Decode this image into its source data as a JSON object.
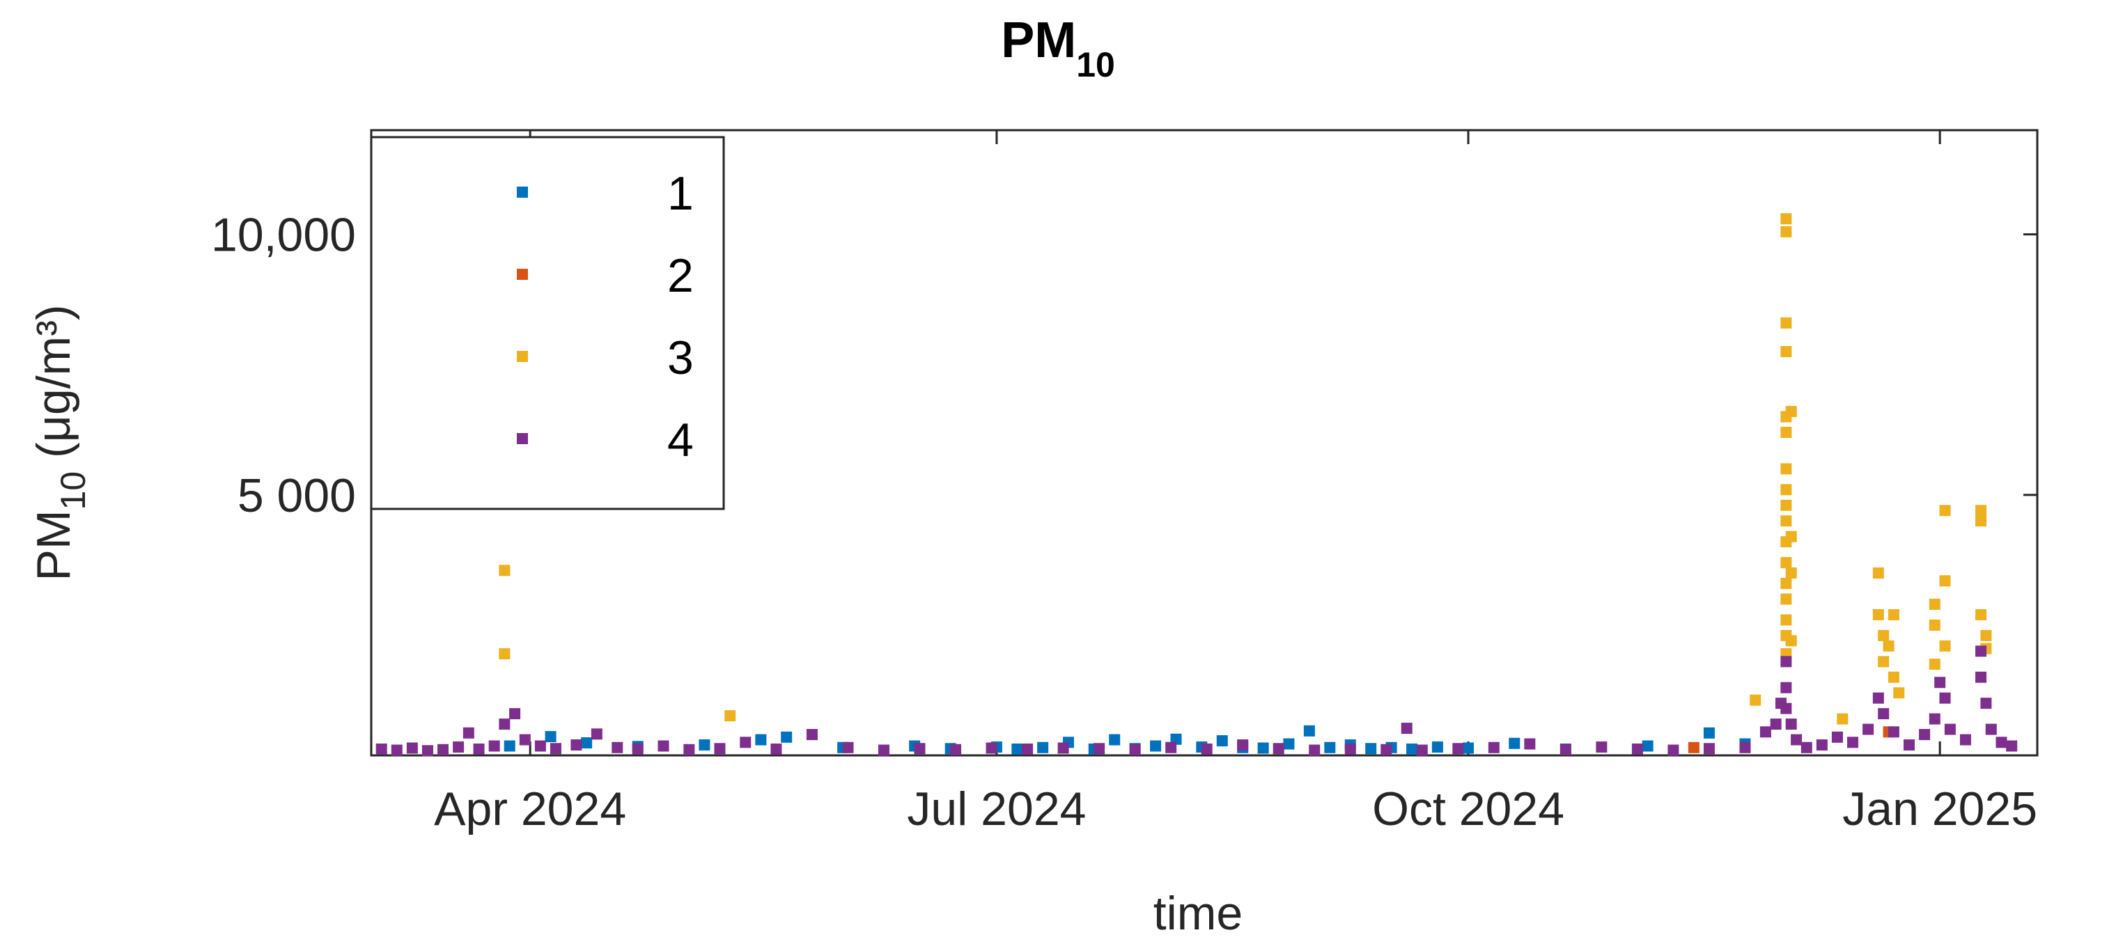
{
  "chart_data": {
    "type": "scatter",
    "title": {
      "main": "PM",
      "sub": "10"
    },
    "xlabel": "time",
    "ylabel": {
      "prefix": "PM",
      "sub": "10",
      "suffix": " (μg/m³)"
    },
    "x_axis": {
      "range": [
        "2024-03-01",
        "2025-01-20"
      ],
      "ticks": [
        {
          "date": "2024-04-01",
          "label": "Apr 2024"
        },
        {
          "date": "2024-07-01",
          "label": "Jul 2024"
        },
        {
          "date": "2024-10-01",
          "label": "Oct 2024"
        },
        {
          "date": "2025-01-01",
          "label": "Jan 2025"
        }
      ]
    },
    "y_axis": {
      "range": [
        0,
        12000
      ],
      "ticks": [
        {
          "value": 5000,
          "label": "5 000"
        },
        {
          "value": 10000,
          "label": "10,000"
        }
      ]
    },
    "grid": false,
    "legend": {
      "position": "top-left",
      "box": true
    },
    "series": [
      {
        "name": "1",
        "color": "#0072BD",
        "points": [
          [
            "2024-03-28",
            180
          ],
          [
            "2024-04-05",
            360
          ],
          [
            "2024-04-12",
            240
          ],
          [
            "2024-04-22",
            170
          ],
          [
            "2024-05-05",
            200
          ],
          [
            "2024-05-16",
            300
          ],
          [
            "2024-05-21",
            350
          ],
          [
            "2024-06-01",
            150
          ],
          [
            "2024-06-15",
            180
          ],
          [
            "2024-06-22",
            130
          ],
          [
            "2024-07-01",
            160
          ],
          [
            "2024-07-05",
            120
          ],
          [
            "2024-07-10",
            150
          ],
          [
            "2024-07-15",
            250
          ],
          [
            "2024-07-20",
            120
          ],
          [
            "2024-07-24",
            300
          ],
          [
            "2024-07-28",
            130
          ],
          [
            "2024-08-01",
            180
          ],
          [
            "2024-08-05",
            310
          ],
          [
            "2024-08-10",
            160
          ],
          [
            "2024-08-14",
            280
          ],
          [
            "2024-08-18",
            150
          ],
          [
            "2024-08-22",
            140
          ],
          [
            "2024-08-27",
            220
          ],
          [
            "2024-08-31",
            470
          ],
          [
            "2024-09-04",
            150
          ],
          [
            "2024-09-08",
            200
          ],
          [
            "2024-09-12",
            130
          ],
          [
            "2024-09-16",
            150
          ],
          [
            "2024-09-20",
            120
          ],
          [
            "2024-09-25",
            160
          ],
          [
            "2024-10-01",
            140
          ],
          [
            "2024-10-10",
            230
          ],
          [
            "2024-10-20",
            120
          ],
          [
            "2024-11-05",
            180
          ],
          [
            "2024-11-17",
            430
          ],
          [
            "2024-11-24",
            220
          ]
        ]
      },
      {
        "name": "2",
        "color": "#D95319",
        "points": [
          [
            "2024-11-14",
            150
          ],
          [
            "2024-12-22",
            450
          ]
        ]
      },
      {
        "name": "3",
        "color": "#EDB120",
        "points": [
          [
            "2024-03-27",
            3550
          ],
          [
            "2024-03-27",
            1950
          ],
          [
            "2024-05-10",
            760
          ],
          [
            "2024-11-26",
            1060
          ],
          [
            "2024-12-02",
            10300
          ],
          [
            "2024-12-02",
            10050
          ],
          [
            "2024-12-02",
            8300
          ],
          [
            "2024-12-02",
            7750
          ],
          [
            "2024-12-02",
            6500
          ],
          [
            "2024-12-02",
            6200
          ],
          [
            "2024-12-02",
            5500
          ],
          [
            "2024-12-02",
            5100
          ],
          [
            "2024-12-02",
            4800
          ],
          [
            "2024-12-02",
            4500
          ],
          [
            "2024-12-02",
            4100
          ],
          [
            "2024-12-02",
            3700
          ],
          [
            "2024-12-02",
            3300
          ],
          [
            "2024-12-02",
            3000
          ],
          [
            "2024-12-02",
            2600
          ],
          [
            "2024-12-02",
            2300
          ],
          [
            "2024-12-02",
            1950
          ],
          [
            "2024-12-03",
            6600
          ],
          [
            "2024-12-03",
            4200
          ],
          [
            "2024-12-03",
            3500
          ],
          [
            "2024-12-03",
            2200
          ],
          [
            "2024-12-13",
            700
          ],
          [
            "2024-12-20",
            3500
          ],
          [
            "2024-12-20",
            2700
          ],
          [
            "2024-12-21",
            2300
          ],
          [
            "2024-12-21",
            1800
          ],
          [
            "2024-12-22",
            2100
          ],
          [
            "2024-12-23",
            2700
          ],
          [
            "2024-12-23",
            1500
          ],
          [
            "2024-12-24",
            1200
          ],
          [
            "2024-12-31",
            2900
          ],
          [
            "2024-12-31",
            2500
          ],
          [
            "2024-12-31",
            1750
          ],
          [
            "2025-01-02",
            4700
          ],
          [
            "2025-01-02",
            3350
          ],
          [
            "2025-01-02",
            2100
          ],
          [
            "2025-01-09",
            4700
          ],
          [
            "2025-01-09",
            4500
          ],
          [
            "2025-01-09",
            2700
          ],
          [
            "2025-01-10",
            2300
          ],
          [
            "2025-01-10",
            2050
          ]
        ]
      },
      {
        "name": "4",
        "color": "#7E2F8E",
        "points": [
          [
            "2024-03-03",
            120
          ],
          [
            "2024-03-06",
            100
          ],
          [
            "2024-03-09",
            140
          ],
          [
            "2024-03-12",
            90
          ],
          [
            "2024-03-15",
            110
          ],
          [
            "2024-03-18",
            160
          ],
          [
            "2024-03-20",
            430
          ],
          [
            "2024-03-22",
            120
          ],
          [
            "2024-03-25",
            180
          ],
          [
            "2024-03-27",
            600
          ],
          [
            "2024-03-29",
            800
          ],
          [
            "2024-03-31",
            300
          ],
          [
            "2024-04-03",
            180
          ],
          [
            "2024-04-06",
            130
          ],
          [
            "2024-04-10",
            200
          ],
          [
            "2024-04-14",
            410
          ],
          [
            "2024-04-18",
            150
          ],
          [
            "2024-04-22",
            120
          ],
          [
            "2024-04-27",
            180
          ],
          [
            "2024-05-02",
            110
          ],
          [
            "2024-05-08",
            130
          ],
          [
            "2024-05-13",
            250
          ],
          [
            "2024-05-19",
            120
          ],
          [
            "2024-05-26",
            400
          ],
          [
            "2024-06-02",
            150
          ],
          [
            "2024-06-09",
            100
          ],
          [
            "2024-06-16",
            130
          ],
          [
            "2024-06-23",
            110
          ],
          [
            "2024-06-30",
            140
          ],
          [
            "2024-07-07",
            120
          ],
          [
            "2024-07-14",
            140
          ],
          [
            "2024-07-21",
            130
          ],
          [
            "2024-07-28",
            110
          ],
          [
            "2024-08-04",
            150
          ],
          [
            "2024-08-11",
            120
          ],
          [
            "2024-08-18",
            200
          ],
          [
            "2024-08-25",
            130
          ],
          [
            "2024-09-01",
            100
          ],
          [
            "2024-09-08",
            120
          ],
          [
            "2024-09-15",
            110
          ],
          [
            "2024-09-19",
            520
          ],
          [
            "2024-09-22",
            100
          ],
          [
            "2024-09-29",
            130
          ],
          [
            "2024-10-06",
            150
          ],
          [
            "2024-10-13",
            220
          ],
          [
            "2024-10-20",
            110
          ],
          [
            "2024-10-27",
            160
          ],
          [
            "2024-11-03",
            120
          ],
          [
            "2024-11-10",
            100
          ],
          [
            "2024-11-17",
            130
          ],
          [
            "2024-11-24",
            150
          ],
          [
            "2024-11-28",
            450
          ],
          [
            "2024-11-30",
            600
          ],
          [
            "2024-12-01",
            1000
          ],
          [
            "2024-12-02",
            1800
          ],
          [
            "2024-12-02",
            1300
          ],
          [
            "2024-12-02",
            900
          ],
          [
            "2024-12-03",
            600
          ],
          [
            "2024-12-04",
            300
          ],
          [
            "2024-12-06",
            150
          ],
          [
            "2024-12-09",
            200
          ],
          [
            "2024-12-12",
            350
          ],
          [
            "2024-12-15",
            250
          ],
          [
            "2024-12-18",
            500
          ],
          [
            "2024-12-20",
            1100
          ],
          [
            "2024-12-21",
            800
          ],
          [
            "2024-12-23",
            450
          ],
          [
            "2024-12-26",
            200
          ],
          [
            "2024-12-29",
            400
          ],
          [
            "2024-12-31",
            700
          ],
          [
            "2025-01-01",
            1400
          ],
          [
            "2025-01-02",
            1100
          ],
          [
            "2025-01-03",
            500
          ],
          [
            "2025-01-06",
            300
          ],
          [
            "2025-01-09",
            2000
          ],
          [
            "2025-01-09",
            1500
          ],
          [
            "2025-01-10",
            1000
          ],
          [
            "2025-01-11",
            500
          ],
          [
            "2025-01-13",
            250
          ],
          [
            "2025-01-15",
            180
          ]
        ]
      }
    ]
  }
}
